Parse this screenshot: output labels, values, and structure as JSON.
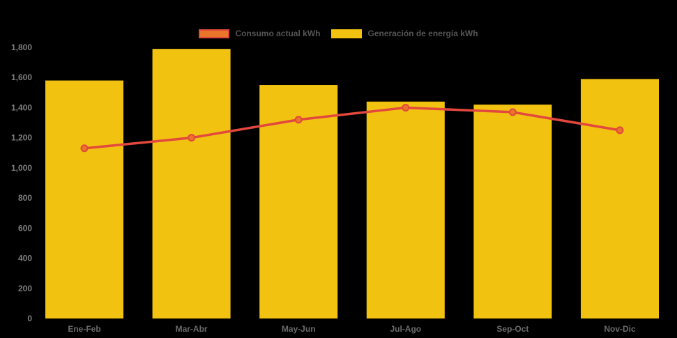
{
  "chart_data": {
    "type": "bar",
    "title": "",
    "xlabel": "",
    "ylabel": "",
    "categories": [
      "Ene-Feb",
      "Mar-Abr",
      "May-Jun",
      "Jul-Ago",
      "Sep-Oct",
      "Nov-Dic"
    ],
    "series": [
      {
        "name": "Consumo actual kWh",
        "type": "line",
        "color": "#E2483D",
        "marker_fill": "#E8752A",
        "values": [
          1130,
          1200,
          1320,
          1400,
          1370,
          1250
        ]
      },
      {
        "name": "Generación de energía kWh",
        "type": "bar",
        "color": "#F2C211",
        "values": [
          1580,
          1790,
          1550,
          1440,
          1420,
          1590
        ]
      }
    ],
    "ylim": [
      0,
      1800
    ],
    "ytick_interval": 200,
    "ytick_labels": [
      "0",
      "200",
      "400",
      "600",
      "800",
      "1,000",
      "1,200",
      "1,400",
      "1,600",
      "1,800"
    ],
    "legend_position": "top",
    "grid": false,
    "background": "#000000",
    "ytick_color": "#7F7F7F",
    "xtick_color": "#6B6B6B",
    "legend_text_color": "#555555"
  }
}
